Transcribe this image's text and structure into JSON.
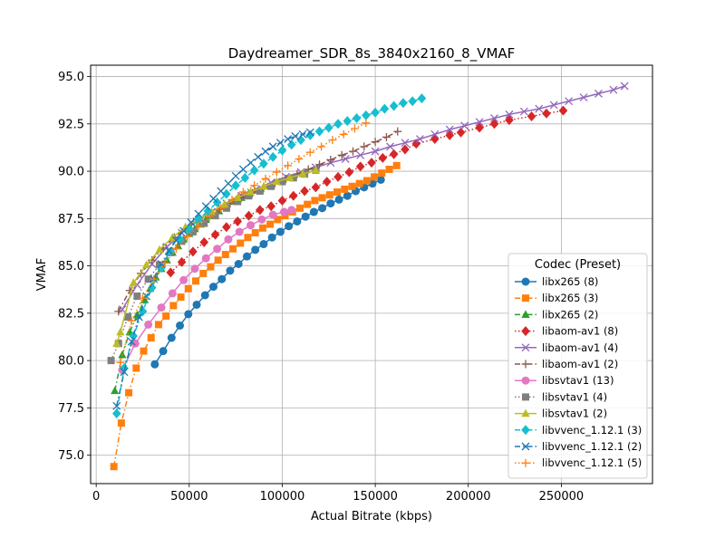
{
  "chart_data": {
    "type": "line",
    "title": "Daydreamer_SDR_8s_3840x2160_8_VMAF",
    "xlabel": "Actual Bitrate (kbps)",
    "ylabel": "VMAF",
    "xlim": [
      -3000,
      299000
    ],
    "ylim": [
      73.5,
      95.6
    ],
    "xticks": [
      0,
      50000,
      100000,
      150000,
      200000,
      250000
    ],
    "yticks": [
      75.0,
      77.5,
      80.0,
      82.5,
      85.0,
      87.5,
      90.0,
      92.5,
      95.0
    ],
    "xtick_labels": [
      "0",
      "50000",
      "100000",
      "150000",
      "200000",
      "250000"
    ],
    "ytick_labels": [
      "75.0",
      "77.5",
      "80.0",
      "82.5",
      "85.0",
      "87.5",
      "90.0",
      "92.5",
      "95.0"
    ],
    "grid": true,
    "legend_title": "Codec (Preset)",
    "legend_position": "lower-right",
    "series": [
      {
        "name": "libx265 (8)",
        "color": "#1f77b4",
        "marker": "circle",
        "dash": "solid",
        "x": [
          31500,
          36000,
          40500,
          45000,
          49500,
          54000,
          58500,
          63000,
          67500,
          72000,
          76500,
          81000,
          85500,
          90000,
          94500,
          99000,
          103500,
          108000,
          112500,
          117000,
          121500,
          126000,
          130500,
          135000,
          139500,
          144000,
          148500,
          153000
        ],
        "y": [
          79.8,
          80.5,
          81.2,
          81.85,
          82.45,
          82.95,
          83.45,
          83.9,
          84.3,
          84.75,
          85.1,
          85.5,
          85.85,
          86.15,
          86.5,
          86.8,
          87.1,
          87.35,
          87.6,
          87.85,
          88.05,
          88.3,
          88.5,
          88.7,
          88.95,
          89.15,
          89.35,
          89.55
        ]
      },
      {
        "name": "libx265 (3)",
        "color": "#ff7f0e",
        "marker": "square",
        "dash": "dashdot",
        "x": [
          9500,
          13500,
          17500,
          21500,
          25500,
          29500,
          33500,
          37500,
          41500,
          45500,
          49500,
          53500,
          57500,
          61500,
          65500,
          69500,
          73500,
          77500,
          81500,
          85500,
          89500,
          93500,
          97500,
          101500,
          105500,
          109500,
          113500,
          117500,
          121500,
          125500,
          129500,
          133500,
          137500,
          141500,
          145500,
          149500,
          153500,
          157500,
          161500
        ],
        "y": [
          74.4,
          76.7,
          78.3,
          79.6,
          80.5,
          81.2,
          81.9,
          82.35,
          82.9,
          83.35,
          83.8,
          84.2,
          84.6,
          84.95,
          85.3,
          85.6,
          85.9,
          86.2,
          86.5,
          86.75,
          87.0,
          87.2,
          87.45,
          87.65,
          87.85,
          88.05,
          88.25,
          88.45,
          88.6,
          88.75,
          88.9,
          89.05,
          89.2,
          89.35,
          89.5,
          89.7,
          89.9,
          90.1,
          90.3
        ]
      },
      {
        "name": "libx265 (2)",
        "color": "#2ca02c",
        "marker": "triangle",
        "dash": "dashdot",
        "x": [
          10000,
          14000,
          18000,
          22000,
          26000,
          29000,
          32000,
          35000,
          38000,
          41000,
          44000,
          47000,
          50000,
          53000,
          56000,
          59000,
          62000,
          66000,
          70000,
          74000,
          78000,
          82000
        ],
        "y": [
          78.4,
          80.3,
          81.5,
          82.4,
          83.2,
          83.8,
          84.4,
          84.85,
          85.3,
          85.7,
          86.05,
          86.4,
          86.7,
          86.95,
          87.2,
          87.45,
          87.65,
          87.9,
          88.15,
          88.4,
          88.6,
          88.8
        ]
      },
      {
        "name": "libaom-av1 (8)",
        "color": "#d62728",
        "marker": "diamond",
        "dash": "dotted",
        "x": [
          40000,
          46000,
          52000,
          58000,
          64000,
          70000,
          76000,
          82000,
          88000,
          94000,
          100000,
          106000,
          112000,
          118000,
          124000,
          130000,
          136000,
          142000,
          148000,
          154000,
          160000,
          166000,
          172000,
          182000,
          190000,
          196000,
          206000,
          214000,
          222000,
          234000,
          242000,
          251000
        ],
        "y": [
          84.65,
          85.2,
          85.75,
          86.25,
          86.65,
          87.05,
          87.35,
          87.65,
          87.95,
          88.15,
          88.45,
          88.7,
          88.95,
          89.15,
          89.45,
          89.7,
          89.95,
          90.25,
          90.45,
          90.7,
          90.9,
          91.15,
          91.45,
          91.7,
          91.9,
          92.05,
          92.3,
          92.5,
          92.7,
          92.9,
          93.05,
          93.2
        ]
      },
      {
        "name": "libaom-av1 (4)",
        "color": "#9467bd",
        "marker": "x",
        "dash": "solid",
        "x": [
          14000,
          22000,
          30000,
          38000,
          46000,
          54000,
          62000,
          70000,
          78000,
          86000,
          94000,
          102000,
          110000,
          118000,
          126000,
          134000,
          142000,
          150000,
          158000,
          166000,
          174000,
          182000,
          190000,
          198000,
          206000,
          214000,
          222000,
          230000,
          238000,
          246000,
          254000,
          262000,
          270000,
          278000,
          284000
        ],
        "y": [
          82.7,
          84.0,
          85.1,
          86.0,
          86.75,
          87.35,
          87.85,
          88.3,
          88.7,
          89.05,
          89.4,
          89.7,
          89.95,
          90.2,
          90.45,
          90.65,
          90.85,
          91.05,
          91.3,
          91.5,
          91.7,
          91.95,
          92.2,
          92.4,
          92.6,
          92.8,
          93.0,
          93.15,
          93.3,
          93.5,
          93.7,
          93.9,
          94.1,
          94.3,
          94.5
        ]
      },
      {
        "name": "libaom-av1 (2)",
        "color": "#8c564b",
        "marker": "plus",
        "dash": "dashdot",
        "x": [
          12000,
          18000,
          24000,
          30000,
          36000,
          42000,
          48000,
          54000,
          60000,
          66000,
          72000,
          78000,
          84000,
          90000,
          96000,
          102000,
          108000,
          114000,
          120000,
          126000,
          132000,
          138000,
          144000,
          150000,
          156000,
          162000
        ],
        "y": [
          82.6,
          83.7,
          84.6,
          85.3,
          85.95,
          86.5,
          86.95,
          87.35,
          87.7,
          88.0,
          88.3,
          88.6,
          88.85,
          89.1,
          89.35,
          89.6,
          89.85,
          90.1,
          90.35,
          90.6,
          90.85,
          91.05,
          91.3,
          91.55,
          91.8,
          92.1
        ]
      },
      {
        "name": "libsvtav1 (13)",
        "color": "#e377c2",
        "marker": "circle",
        "dash": "solid",
        "x": [
          14000,
          21000,
          28000,
          35000,
          41000,
          47000,
          53000,
          59000,
          65000,
          71000,
          77000,
          83000,
          89000,
          95000,
          101000,
          105000
        ],
        "y": [
          79.5,
          80.9,
          81.9,
          82.8,
          83.55,
          84.25,
          84.85,
          85.4,
          85.9,
          86.4,
          86.8,
          87.15,
          87.45,
          87.7,
          87.85,
          87.95
        ]
      },
      {
        "name": "libsvtav1 (4)",
        "color": "#7f7f7f",
        "marker": "square",
        "dash": "dotted",
        "x": [
          8000,
          12000,
          17000,
          22000,
          28000,
          34000,
          40000,
          46000,
          52000,
          58000,
          64000,
          70000,
          76000,
          82000,
          88000,
          94000,
          100000,
          106000,
          112000,
          118000
        ],
        "y": [
          80.0,
          80.9,
          82.3,
          83.4,
          84.3,
          85.05,
          85.7,
          86.3,
          86.8,
          87.25,
          87.65,
          88.05,
          88.4,
          88.7,
          88.95,
          89.2,
          89.45,
          89.65,
          89.85,
          90.05
        ]
      },
      {
        "name": "libsvtav1 (2)",
        "color": "#bcbd22",
        "marker": "triangle",
        "dash": "solid",
        "x": [
          11000,
          13000,
          20000,
          27000,
          34000,
          41000,
          48000,
          55000,
          62000,
          69000,
          76000,
          83000,
          90000,
          97000,
          104000,
          111000,
          118000
        ],
        "y": [
          80.9,
          81.5,
          84.1,
          85.05,
          85.85,
          86.5,
          87.05,
          87.45,
          87.85,
          88.25,
          88.6,
          88.9,
          89.2,
          89.45,
          89.65,
          89.85,
          90.05
        ]
      },
      {
        "name": "libvvenc_1.12.1 (3)",
        "color": "#17becf",
        "marker": "diamond",
        "dash": "dashdot",
        "x": [
          11000,
          15000,
          20000,
          25000,
          30000,
          35000,
          40000,
          45000,
          50000,
          55000,
          60000,
          65000,
          70000,
          75000,
          80000,
          85000,
          90000,
          95000,
          100000,
          105000,
          110000,
          115000,
          120000,
          125000,
          130000,
          135000,
          140000,
          145000,
          150000,
          155000,
          160000,
          165000,
          170000,
          175000
        ],
        "y": [
          77.2,
          79.6,
          81.3,
          82.6,
          83.85,
          84.9,
          85.75,
          86.4,
          86.95,
          87.45,
          87.9,
          88.35,
          88.8,
          89.25,
          89.65,
          90.05,
          90.4,
          90.75,
          91.1,
          91.4,
          91.65,
          91.9,
          92.1,
          92.3,
          92.5,
          92.65,
          92.8,
          92.95,
          93.1,
          93.3,
          93.45,
          93.6,
          93.7,
          93.85
        ]
      },
      {
        "name": "libvvenc_1.12.1 (2)",
        "color": "#1f77b4",
        "marker": "x",
        "dash": "dashdot",
        "x": [
          11000,
          15000,
          19000,
          23000,
          27000,
          31000,
          35000,
          39000,
          43000,
          47000,
          51000,
          55000,
          59000,
          63000,
          67000,
          71000,
          75000,
          79000,
          83000,
          87000,
          91000,
          95000,
          99000,
          103000,
          107000,
          111000,
          115000
        ],
        "y": [
          77.6,
          79.4,
          81.0,
          82.3,
          83.4,
          84.3,
          85.1,
          85.8,
          86.35,
          86.85,
          87.3,
          87.75,
          88.15,
          88.55,
          88.95,
          89.35,
          89.75,
          90.1,
          90.45,
          90.75,
          91.05,
          91.3,
          91.5,
          91.7,
          91.85,
          91.95,
          92.05
        ]
      },
      {
        "name": "libvvenc_1.12.1 (5)",
        "color": "#ff7f0e",
        "marker": "plus",
        "dash": "dotted",
        "x": [
          13000,
          19000,
          25000,
          31000,
          37000,
          43000,
          49000,
          55000,
          61000,
          67000,
          73000,
          79000,
          85000,
          91000,
          97000,
          103000,
          109000,
          115000,
          121000,
          127000,
          133000,
          139000,
          145000
        ],
        "y": [
          79.9,
          82.1,
          83.3,
          84.3,
          85.15,
          85.9,
          86.55,
          87.1,
          87.6,
          88.05,
          88.5,
          88.9,
          89.25,
          89.6,
          89.95,
          90.3,
          90.65,
          91.0,
          91.3,
          91.65,
          91.95,
          92.25,
          92.55
        ]
      }
    ]
  }
}
